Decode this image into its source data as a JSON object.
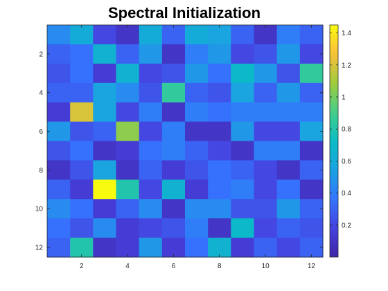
{
  "chart_data": {
    "type": "heatmap",
    "title": "Spectral Initialization",
    "xlabel": "",
    "ylabel": "",
    "rows": 12,
    "cols": 12,
    "x_ticks": [
      "2",
      "4",
      "6",
      "8",
      "10",
      "12"
    ],
    "y_ticks": [
      "2",
      "4",
      "6",
      "8",
      "10",
      "12"
    ],
    "colorbar": {
      "range": [
        0.0,
        1.45
      ],
      "ticks": [
        "0.2",
        "0.4",
        "0.6",
        "0.8",
        "1",
        "1.2",
        "1.4"
      ],
      "colormap": "parula"
    },
    "values": [
      [
        0.45,
        0.6,
        0.2,
        0.1,
        0.6,
        0.3,
        0.6,
        0.55,
        0.3,
        0.1,
        0.4,
        0.3
      ],
      [
        0.3,
        0.35,
        0.65,
        0.3,
        0.5,
        0.1,
        0.4,
        0.5,
        0.2,
        0.25,
        0.5,
        0.2
      ],
      [
        0.25,
        0.35,
        0.15,
        0.65,
        0.2,
        0.25,
        0.5,
        0.35,
        0.7,
        0.5,
        0.25,
        0.85
      ],
      [
        0.3,
        0.3,
        0.55,
        0.45,
        0.25,
        0.85,
        0.3,
        0.25,
        0.55,
        0.3,
        0.5,
        0.3
      ],
      [
        0.15,
        1.2,
        0.55,
        0.2,
        0.4,
        0.1,
        0.4,
        0.35,
        0.4,
        0.4,
        0.4,
        0.4
      ],
      [
        0.5,
        0.25,
        0.3,
        1.05,
        0.2,
        0.4,
        0.1,
        0.1,
        0.5,
        0.2,
        0.2,
        0.55
      ],
      [
        0.25,
        0.35,
        0.1,
        0.15,
        0.35,
        0.4,
        0.3,
        0.2,
        0.1,
        0.4,
        0.4,
        0.1
      ],
      [
        0.1,
        0.25,
        0.55,
        0.1,
        0.3,
        0.15,
        0.25,
        0.35,
        0.3,
        0.2,
        0.1,
        0.3
      ],
      [
        0.3,
        0.15,
        1.45,
        0.8,
        0.2,
        0.65,
        0.15,
        0.35,
        0.4,
        0.2,
        0.35,
        0.1
      ],
      [
        0.45,
        0.35,
        0.15,
        0.3,
        0.45,
        0.1,
        0.45,
        0.45,
        0.25,
        0.25,
        0.5,
        0.3
      ],
      [
        0.35,
        0.25,
        0.45,
        0.15,
        0.2,
        0.25,
        0.4,
        0.1,
        0.7,
        0.2,
        0.3,
        0.25
      ],
      [
        0.3,
        0.8,
        0.1,
        0.15,
        0.5,
        0.15,
        0.35,
        0.65,
        0.15,
        0.3,
        0.2,
        0.3
      ]
    ]
  }
}
